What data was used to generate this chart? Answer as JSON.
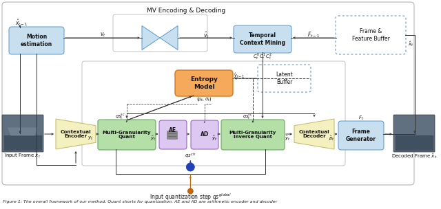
{
  "bg_color": "#ffffff",
  "caption": "Figure 1: The overall framework of our method. Quant shorts for quantization. AE and AD are arithmetic encoder and decoder",
  "mv_label": "MV Encoding & Decoding",
  "box_motion": {
    "label": "Motion\nestimation",
    "fc": "#c8dff0",
    "ec": "#5599cc"
  },
  "box_temporal": {
    "label": "Temporal\nContext Mining",
    "fc": "#c8dff0",
    "ec": "#5599cc"
  },
  "box_frame_buf": {
    "label": "Frame &\nFeature Buffer",
    "fc": "#ffffff",
    "ec": "#5588bb"
  },
  "box_latent": {
    "label": "Latent\nBuffer",
    "fc": "#ffffff",
    "ec": "#5588bb"
  },
  "box_entropy": {
    "label": "Entropy\nModel",
    "fc": "#f5a95a",
    "ec": "#d07818"
  },
  "box_ctx_enc": {
    "label": "Contextual\nEncoder",
    "fc": "#f5f0c0",
    "ec": "#c0b860"
  },
  "box_mg_quant": {
    "label": "Multi-Granularity\nQuant",
    "fc": "#b4e0a8",
    "ec": "#58a050"
  },
  "box_ae": {
    "label": "AE",
    "fc": "#dcc8f0",
    "ec": "#9050b8"
  },
  "box_ad": {
    "label": "AD",
    "fc": "#dcc8f0",
    "ec": "#9050b8"
  },
  "box_mg_inv": {
    "label": "Multi-Granularity\nInverse Quant",
    "fc": "#b4e0a8",
    "ec": "#58a050"
  },
  "box_ctx_dec": {
    "label": "Contextual\nDecoder",
    "fc": "#f5f0c0",
    "ec": "#c0b860"
  },
  "box_frame_gen": {
    "label": "Frame\nGenerator",
    "fc": "#c8dff0",
    "ec": "#5599cc"
  },
  "dark": "#333333",
  "blue_dash": "#5588bb",
  "orange": "#cc6600"
}
